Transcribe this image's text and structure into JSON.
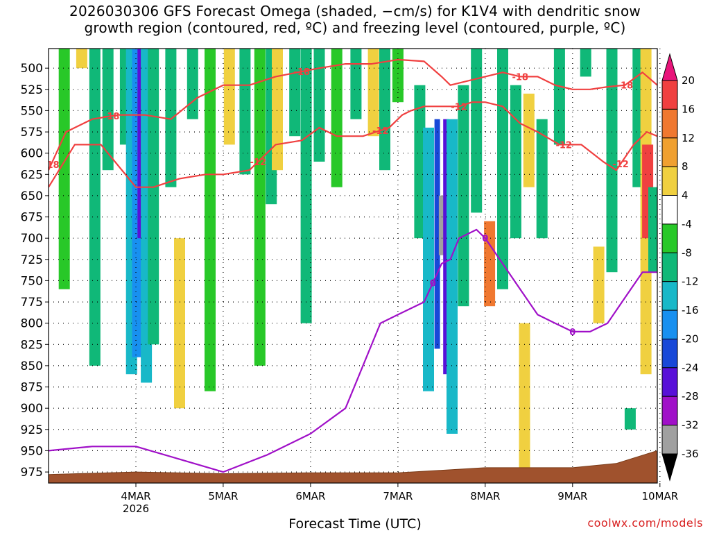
{
  "chart_data": {
    "type": "heatmap",
    "title": [
      "2026030306 GFS Forecast Omega (shaded, −cm/s) for K1V4 with dendritic snow",
      "growth region (contoured, red, ºC) and freezing level (contoured, purple, ºC)"
    ],
    "xlabel": "Forecast Time (UTC)",
    "ylabel": "",
    "credit": "coolwx.com/models",
    "x_ticks": [
      {
        "label": "4MAR",
        "sublabel": "2026",
        "day": 1.0
      },
      {
        "label": "5MAR",
        "sublabel": "",
        "day": 2.0
      },
      {
        "label": "6MAR",
        "sublabel": "",
        "day": 3.0
      },
      {
        "label": "7MAR",
        "sublabel": "",
        "day": 4.0
      },
      {
        "label": "8MAR",
        "sublabel": "",
        "day": 5.0
      },
      {
        "label": "9MAR",
        "sublabel": "",
        "day": 6.0
      },
      {
        "label": "10MAR",
        "sublabel": "",
        "day": 7.0
      }
    ],
    "xlim_days": [
      0.0,
      6.97
    ],
    "y_ticks": [
      500,
      525,
      550,
      575,
      600,
      625,
      650,
      675,
      700,
      725,
      750,
      775,
      800,
      825,
      850,
      875,
      900,
      925,
      950,
      975
    ],
    "ylim_hpa": [
      988,
      477
    ],
    "colorbar": {
      "labels": [
        "20",
        "16",
        "12",
        "8",
        "4",
        "-4",
        "-8",
        "-12",
        "-16",
        "-20",
        "-24",
        "-28",
        "-32",
        "-36"
      ],
      "colors": [
        "#e8147a",
        "#f04040",
        "#f07830",
        "#f0a030",
        "#f0d040",
        "#ffffff",
        "#28c828",
        "#10b878",
        "#18b8c8",
        "#1890f0",
        "#1848d8",
        "#5810d8",
        "#a010c8",
        "#a0a0a0",
        "#000000"
      ]
    },
    "omega_bands": [
      {
        "day": 0.18,
        "p_top": 477,
        "p_bot": 760,
        "value": -6
      },
      {
        "day": 0.38,
        "p_top": 477,
        "p_bot": 500,
        "value": 5
      },
      {
        "day": 0.53,
        "p_top": 477,
        "p_bot": 850,
        "value": -8
      },
      {
        "day": 0.68,
        "p_top": 477,
        "p_bot": 620,
        "value": -10
      },
      {
        "day": 0.88,
        "p_top": 477,
        "p_bot": 590,
        "value": -8
      },
      {
        "day": 0.95,
        "p_top": 477,
        "p_bot": 860,
        "value": -12
      },
      {
        "day": 1.02,
        "p_top": 477,
        "p_bot": 840,
        "value": -18
      },
      {
        "day": 1.05,
        "p_top": 477,
        "p_bot": 700,
        "value": -26
      },
      {
        "day": 1.12,
        "p_top": 477,
        "p_bot": 870,
        "value": -14
      },
      {
        "day": 1.2,
        "p_top": 477,
        "p_bot": 825,
        "value": -9
      },
      {
        "day": 1.4,
        "p_top": 477,
        "p_bot": 640,
        "value": -8
      },
      {
        "day": 1.5,
        "p_top": 700,
        "p_bot": 900,
        "value": 5
      },
      {
        "day": 1.65,
        "p_top": 477,
        "p_bot": 560,
        "value": -9
      },
      {
        "day": 1.85,
        "p_top": 477,
        "p_bot": 880,
        "value": -7
      },
      {
        "day": 2.07,
        "p_top": 477,
        "p_bot": 590,
        "value": 5
      },
      {
        "day": 2.25,
        "p_top": 477,
        "p_bot": 625,
        "value": -9
      },
      {
        "day": 2.42,
        "p_top": 477,
        "p_bot": 850,
        "value": -7
      },
      {
        "day": 2.55,
        "p_top": 477,
        "p_bot": 660,
        "value": -9
      },
      {
        "day": 2.62,
        "p_top": 477,
        "p_bot": 620,
        "value": 5
      },
      {
        "day": 2.82,
        "p_top": 477,
        "p_bot": 580,
        "value": -8
      },
      {
        "day": 2.95,
        "p_top": 477,
        "p_bot": 800,
        "value": -9
      },
      {
        "day": 3.1,
        "p_top": 477,
        "p_bot": 610,
        "value": -8
      },
      {
        "day": 3.3,
        "p_top": 477,
        "p_bot": 640,
        "value": -7
      },
      {
        "day": 3.52,
        "p_top": 477,
        "p_bot": 560,
        "value": -9
      },
      {
        "day": 3.72,
        "p_top": 477,
        "p_bot": 580,
        "value": 5
      },
      {
        "day": 3.85,
        "p_top": 477,
        "p_bot": 620,
        "value": -8
      },
      {
        "day": 4.0,
        "p_top": 477,
        "p_bot": 540,
        "value": -7
      },
      {
        "day": 4.25,
        "p_top": 520,
        "p_bot": 700,
        "value": -8
      },
      {
        "day": 4.35,
        "p_top": 570,
        "p_bot": 880,
        "value": -12
      },
      {
        "day": 4.45,
        "p_top": 560,
        "p_bot": 830,
        "value": -20
      },
      {
        "day": 4.5,
        "p_top": 650,
        "p_bot": 720,
        "value": -34
      },
      {
        "day": 4.55,
        "p_top": 560,
        "p_bot": 860,
        "value": -26
      },
      {
        "day": 4.62,
        "p_top": 560,
        "p_bot": 930,
        "value": -14
      },
      {
        "day": 4.75,
        "p_top": 520,
        "p_bot": 780,
        "value": -9
      },
      {
        "day": 4.9,
        "p_top": 477,
        "p_bot": 670,
        "value": -10
      },
      {
        "day": 5.05,
        "p_top": 680,
        "p_bot": 780,
        "value": 14
      },
      {
        "day": 5.2,
        "p_top": 477,
        "p_bot": 760,
        "value": -9
      },
      {
        "day": 5.35,
        "p_top": 520,
        "p_bot": 700,
        "value": -8
      },
      {
        "day": 5.45,
        "p_top": 800,
        "p_bot": 970,
        "value": 5
      },
      {
        "day": 5.5,
        "p_top": 530,
        "p_bot": 640,
        "value": 5
      },
      {
        "day": 5.65,
        "p_top": 560,
        "p_bot": 700,
        "value": -8
      },
      {
        "day": 5.85,
        "p_top": 477,
        "p_bot": 590,
        "value": -9
      },
      {
        "day": 6.15,
        "p_top": 477,
        "p_bot": 510,
        "value": -8
      },
      {
        "day": 6.3,
        "p_top": 710,
        "p_bot": 800,
        "value": 5
      },
      {
        "day": 6.45,
        "p_top": 477,
        "p_bot": 740,
        "value": -9
      },
      {
        "day": 6.75,
        "p_top": 477,
        "p_bot": 640,
        "value": -8
      },
      {
        "day": 6.84,
        "p_top": 477,
        "p_bot": 860,
        "value": 6
      },
      {
        "day": 6.86,
        "p_top": 590,
        "p_bot": 700,
        "value": 16
      },
      {
        "day": 6.93,
        "p_top": 640,
        "p_bot": 740,
        "value": -10
      },
      {
        "day": 6.66,
        "p_top": 900,
        "p_bot": 925,
        "value": -8
      }
    ],
    "dgz_minus12": {
      "label": "-12",
      "label_days": [
        2.4,
        3.8,
        4.7,
        5.9,
        6.55
      ],
      "points": [
        [
          0.0,
          640
        ],
        [
          0.3,
          590
        ],
        [
          0.6,
          590
        ],
        [
          1.0,
          640
        ],
        [
          1.2,
          640
        ],
        [
          1.5,
          630
        ],
        [
          1.8,
          625
        ],
        [
          2.0,
          625
        ],
        [
          2.3,
          620
        ],
        [
          2.6,
          590
        ],
        [
          2.9,
          585
        ],
        [
          3.1,
          570
        ],
        [
          3.3,
          580
        ],
        [
          3.6,
          580
        ],
        [
          3.9,
          570
        ],
        [
          4.05,
          555
        ],
        [
          4.15,
          550
        ],
        [
          4.3,
          545
        ],
        [
          4.5,
          545
        ],
        [
          4.7,
          545
        ],
        [
          4.85,
          540
        ],
        [
          5.0,
          540
        ],
        [
          5.2,
          545
        ],
        [
          5.4,
          565
        ],
        [
          5.6,
          575
        ],
        [
          5.85,
          590
        ],
        [
          6.1,
          590
        ],
        [
          6.35,
          610
        ],
        [
          6.5,
          620
        ],
        [
          6.7,
          590
        ],
        [
          6.85,
          575
        ],
        [
          6.97,
          580
        ]
      ]
    },
    "dgz_minus18": {
      "label": "-18",
      "label_days": [
        0.03,
        0.72,
        2.9,
        5.4,
        6.6
      ],
      "points": [
        [
          0.0,
          620
        ],
        [
          0.2,
          575
        ],
        [
          0.5,
          560
        ],
        [
          0.8,
          555
        ],
        [
          1.1,
          555
        ],
        [
          1.4,
          560
        ],
        [
          1.7,
          535
        ],
        [
          2.0,
          520
        ],
        [
          2.3,
          520
        ],
        [
          2.6,
          510
        ],
        [
          2.85,
          505
        ],
        [
          3.1,
          500
        ],
        [
          3.4,
          495
        ],
        [
          3.7,
          495
        ],
        [
          4.0,
          490
        ],
        [
          4.3,
          492
        ],
        [
          4.5,
          510
        ],
        [
          4.6,
          520
        ],
        [
          5.0,
          510
        ],
        [
          5.2,
          505
        ],
        [
          5.4,
          510
        ],
        [
          5.6,
          510
        ],
        [
          5.8,
          520
        ],
        [
          6.0,
          525
        ],
        [
          6.2,
          525
        ],
        [
          6.4,
          522
        ],
        [
          6.6,
          520
        ],
        [
          6.8,
          505
        ],
        [
          6.97,
          520
        ]
      ]
    },
    "freezing_level": {
      "label": "0",
      "points": [
        [
          0.0,
          950
        ],
        [
          0.5,
          945
        ],
        [
          1.0,
          945
        ],
        [
          1.5,
          960
        ],
        [
          2.0,
          975
        ],
        [
          2.5,
          955
        ],
        [
          3.0,
          930
        ],
        [
          3.4,
          900
        ],
        [
          3.6,
          850
        ],
        [
          3.8,
          800
        ],
        [
          4.0,
          790
        ],
        [
          4.3,
          775
        ],
        [
          4.5,
          730
        ],
        [
          4.6,
          725
        ],
        [
          4.7,
          700
        ],
        [
          4.9,
          690
        ],
        [
          5.0,
          700
        ],
        [
          5.2,
          730
        ],
        [
          5.4,
          760
        ],
        [
          5.6,
          790
        ],
        [
          5.8,
          800
        ],
        [
          6.0,
          810
        ],
        [
          6.2,
          810
        ],
        [
          6.4,
          800
        ],
        [
          6.6,
          770
        ],
        [
          6.8,
          740
        ],
        [
          6.97,
          740
        ]
      ]
    },
    "terrain_surface_hpa": [
      [
        0.0,
        978
      ],
      [
        1.0,
        975
      ],
      [
        2.0,
        977
      ],
      [
        3.0,
        976
      ],
      [
        4.0,
        976
      ],
      [
        5.0,
        970
      ],
      [
        6.0,
        970
      ],
      [
        6.5,
        965
      ],
      [
        6.97,
        950
      ]
    ]
  }
}
